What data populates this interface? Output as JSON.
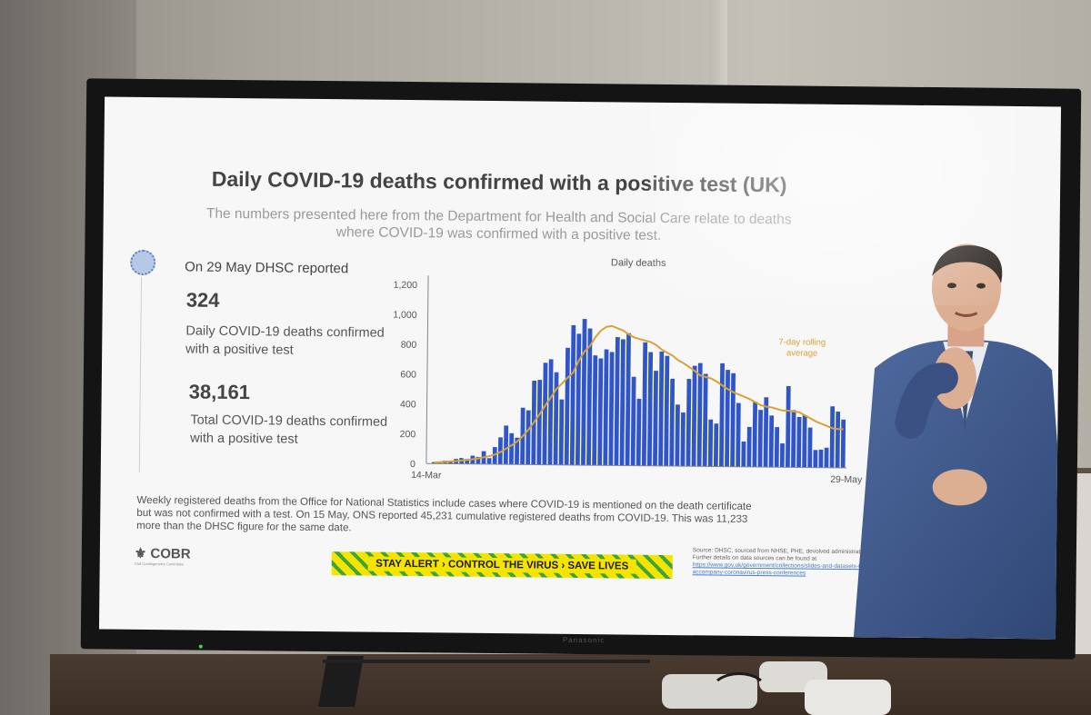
{
  "slide": {
    "title": "Daily COVID-19 deaths confirmed with a positive test (UK)",
    "subtitle": "The numbers presented here from the Department for Health and Social Care relate to deaths where COVID-19 was confirmed with a positive test.",
    "reported_label": "On 29 May DHSC reported",
    "daily_value": "324",
    "daily_desc": "Daily COVID-19 deaths confirmed with a positive test",
    "total_value": "38,161",
    "total_desc": "Total COVID-19 deaths confirmed with a positive test",
    "ons_note": "Weekly registered deaths from the Office for National Statistics include cases where COVID-19 is mentioned on the death certificate but was not confirmed with a test. On 15 May, ONS reported 45,231 cumulative registered deaths from COVID-19. This was 11,233 more than the DHSC figure for the same date.",
    "cobr_label": "COBR",
    "cobr_sub": "Civil Contingencies Committee",
    "stay_alert": "STAY ALERT › CONTROL THE VIRUS › SAVE LIVES",
    "source_text": "Source: DHSC, sourced from NHSE, PHE, devolved administrations. Further details on data sources can be found at",
    "source_link": "https://www.gov.uk/government/collections/slides-and-datasets-to-accompany-coronavirus-press-conferences"
  },
  "chart_data": {
    "type": "bar",
    "title": "Daily deaths",
    "x_start_label": "14-Mar",
    "x_end_label": "29-May",
    "yticks": [
      0,
      200,
      400,
      600,
      800,
      1000,
      1200
    ],
    "ytick_labels": [
      "0",
      "200",
      "400",
      "600",
      "800",
      "1,000",
      "1,200"
    ],
    "ylim": [
      0,
      1200
    ],
    "series": [
      {
        "name": "Daily deaths",
        "color": "#2f55c6",
        "values": [
          10,
          14,
          20,
          16,
          33,
          40,
          33,
          56,
          48,
          87,
          41,
          115,
          181,
          260,
          209,
          180,
          381,
          364,
          563,
          569,
          684,
          708,
          621,
          439,
          786,
          938,
          881,
          980,
          917,
          737,
          717,
          778,
          761,
          861,
          847,
          888,
          596,
          449,
          828,
          763,
          638,
          768,
          739,
          586,
          413,
          360,
          586,
          674,
          693,
          621,
          315,
          288,
          693,
          649,
          627,
          428,
          170,
          268,
          437,
          383,
          468,
          346,
          269,
          160,
          545,
          384,
          338,
          351,
          268,
          118,
          121,
          134,
          412,
          377,
          324
        ]
      },
      {
        "name": "7-day rolling average",
        "color": "#d9a334",
        "type": "line",
        "values": [
          8,
          10,
          13,
          16,
          19,
          23,
          27,
          32,
          38,
          46,
          54,
          65,
          82,
          105,
          128,
          154,
          190,
          232,
          283,
          338,
          396,
          450,
          508,
          545,
          585,
          620,
          700,
          760,
          800,
          860,
          905,
          930,
          935,
          920,
          905,
          880,
          860,
          850,
          840,
          830,
          810,
          780,
          760,
          740,
          710,
          690,
          665,
          640,
          610,
          600,
          590,
          570,
          545,
          520,
          500,
          485,
          470,
          455,
          435,
          415,
          405,
          400,
          390,
          380,
          380,
          375,
          370,
          350,
          330,
          310,
          295,
          280,
          265,
          260,
          260
        ]
      }
    ],
    "annotation": "7-day rolling average"
  },
  "colors": {
    "bar": "#2f55c6",
    "rolling_avg": "#d9a334",
    "stay_alert_yellow": "#f5e400",
    "stay_alert_green": "#3ba43a"
  }
}
